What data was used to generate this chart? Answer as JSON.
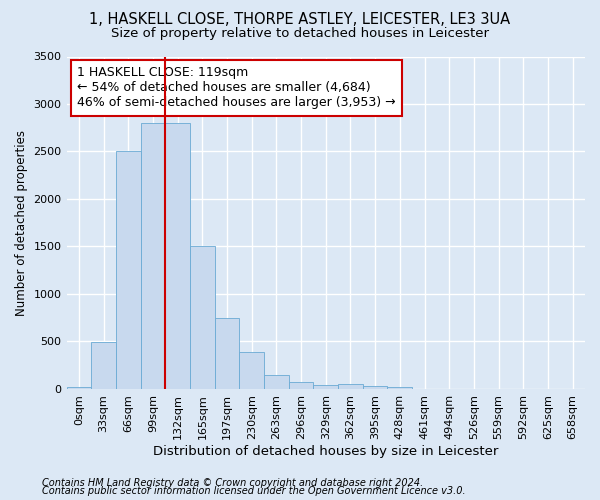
{
  "title_line1": "1, HASKELL CLOSE, THORPE ASTLEY, LEICESTER, LE3 3UA",
  "title_line2": "Size of property relative to detached houses in Leicester",
  "xlabel": "Distribution of detached houses by size in Leicester",
  "ylabel": "Number of detached properties",
  "footnote1": "Contains HM Land Registry data © Crown copyright and database right 2024.",
  "footnote2": "Contains public sector information licensed under the Open Government Licence v3.0.",
  "bar_labels": [
    "0sqm",
    "33sqm",
    "66sqm",
    "99sqm",
    "132sqm",
    "165sqm",
    "197sqm",
    "230sqm",
    "263sqm",
    "296sqm",
    "329sqm",
    "362sqm",
    "395sqm",
    "428sqm",
    "461sqm",
    "494sqm",
    "526sqm",
    "559sqm",
    "592sqm",
    "625sqm",
    "658sqm"
  ],
  "bar_values": [
    25,
    490,
    2500,
    2800,
    2800,
    1500,
    750,
    390,
    150,
    75,
    40,
    50,
    30,
    20,
    0,
    0,
    0,
    0,
    0,
    0,
    0
  ],
  "bar_color": "#c8d9ee",
  "bar_edge_color": "#6aaad4",
  "vline_color": "#cc0000",
  "annotation_text": "1 HASKELL CLOSE: 119sqm\n← 54% of detached houses are smaller (4,684)\n46% of semi-detached houses are larger (3,953) →",
  "annotation_box_color": "#ffffff",
  "annotation_box_edge": "#cc0000",
  "ylim": [
    0,
    3500
  ],
  "yticks": [
    0,
    500,
    1000,
    1500,
    2000,
    2500,
    3000,
    3500
  ],
  "bg_color": "#dce8f5",
  "plot_bg_color": "#dce8f5",
  "grid_color": "#ffffff",
  "title_fontsize": 10.5,
  "subtitle_fontsize": 9.5,
  "ylabel_fontsize": 8.5,
  "xlabel_fontsize": 9.5,
  "tick_fontsize": 8,
  "annotation_fontsize": 9,
  "footnote_fontsize": 7
}
